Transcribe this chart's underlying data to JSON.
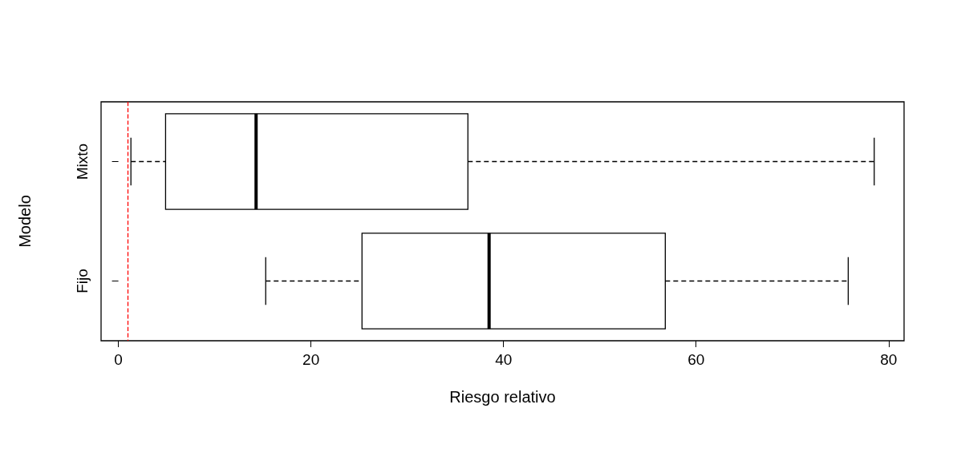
{
  "chart_data": {
    "type": "box",
    "orientation": "horizontal",
    "xlabel": "Riesgo relativo",
    "ylabel": "Modelo",
    "categories": [
      "Mixto",
      "Fijo"
    ],
    "boxes": [
      {
        "low": 1.3,
        "q1": 4.9,
        "median": 14.3,
        "q3": 36.3,
        "high": 78.5
      },
      {
        "low": 15.3,
        "q1": 25.3,
        "median": 38.5,
        "q3": 56.8,
        "high": 75.8
      }
    ],
    "xlim": [
      -1.8,
      81.6
    ],
    "xticks": [
      0,
      20,
      40,
      60,
      80
    ],
    "ref_lines": [
      {
        "axis": "x",
        "value": 1,
        "color": "#ff0000",
        "line_style": "dashed"
      }
    ],
    "grid": false
  }
}
